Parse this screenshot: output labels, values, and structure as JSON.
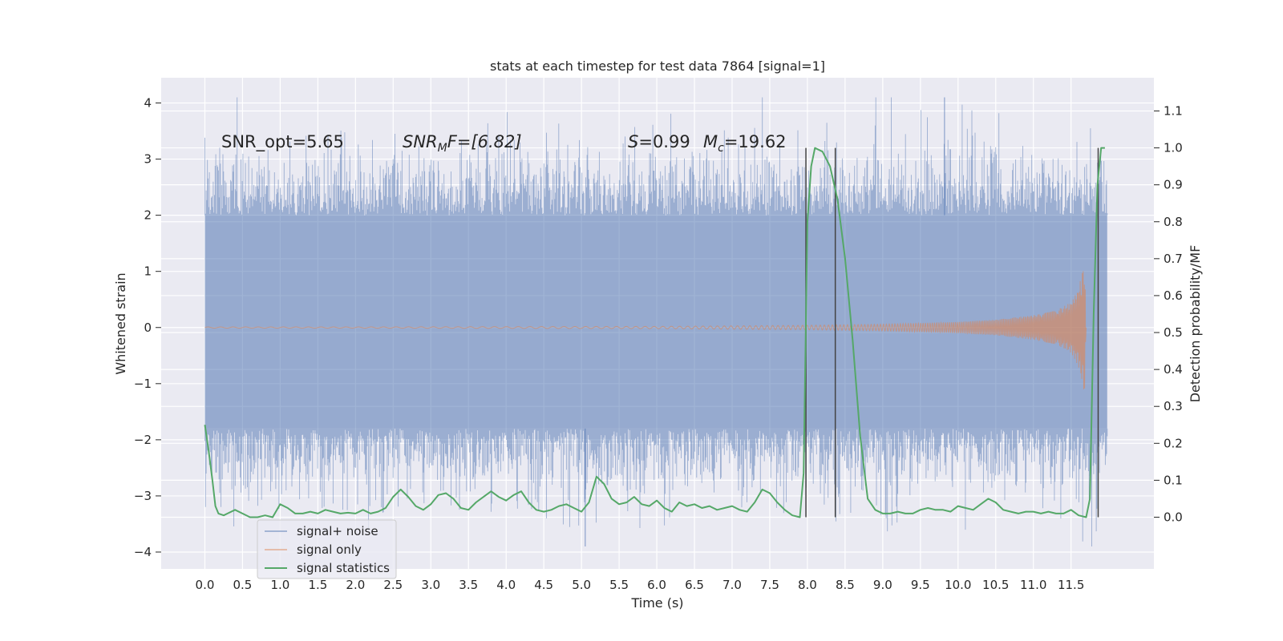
{
  "chart_data": {
    "type": "line",
    "title": "stats at each timestep for test data 7864 [signal=1]",
    "xlabel": "Time (s)",
    "ylabel": "Whitened strain",
    "y2label": "Detection probability/MF",
    "xlim": [
      -0.58,
      12.6
    ],
    "ylim": [
      -4.3,
      4.45
    ],
    "y2lim": [
      -0.14,
      1.19
    ],
    "xticks": [
      "0.0",
      "0.5",
      "1.0",
      "1.5",
      "2.0",
      "2.5",
      "3.0",
      "3.5",
      "4.0",
      "4.5",
      "5.0",
      "5.5",
      "6.0",
      "6.5",
      "7.0",
      "7.5",
      "8.0",
      "8.5",
      "9.0",
      "9.5",
      "10.0",
      "10.5",
      "11.0",
      "11.5"
    ],
    "yticks": [
      "4",
      "3",
      "2",
      "1",
      "0",
      "−1",
      "−2",
      "−3",
      "−4"
    ],
    "y2ticks": [
      "1.1",
      "1.0",
      "0.9",
      "0.8",
      "0.7",
      "0.6",
      "0.5",
      "0.4",
      "0.3",
      "0.2",
      "0.1",
      "0.0"
    ],
    "grid": true,
    "legend_position": "lower-left",
    "annotations": {
      "snr_opt": "SNR_opt=5.65",
      "snr_mf_base": "SNR",
      "snr_mf_sub": "M",
      "snr_mf_rest": "F=[6.82]",
      "s_base": "S",
      "s_rest": "=0.99",
      "mc_base": "M",
      "mc_sub": "c",
      "mc_rest": "=19.62"
    },
    "vertical_lines_x": [
      7.98,
      8.37,
      11.86
    ],
    "series": [
      {
        "name": "signal+ noise",
        "color": "#4c72b0",
        "axis": "left",
        "x_range": [
          0.0,
          11.98
        ],
        "band_upper_typical": 2.0,
        "band_lower_typical": -1.8,
        "peak_max": 4.1,
        "peak_min": -3.9
      },
      {
        "name": "signal only",
        "color": "#dd8452",
        "axis": "left",
        "chirp_x": [
          0.0,
          2.0,
          4.0,
          6.0,
          8.0,
          9.0,
          10.0,
          10.5,
          11.0,
          11.3,
          11.5,
          11.6,
          11.68,
          11.7
        ],
        "chirp_amplitude": [
          0.01,
          0.01,
          0.015,
          0.02,
          0.04,
          0.06,
          0.1,
          0.14,
          0.22,
          0.3,
          0.45,
          0.7,
          1.2,
          0.0
        ]
      },
      {
        "name": "signal statistics",
        "color": "#55a868",
        "axis": "right",
        "x": [
          0.0,
          0.05,
          0.1,
          0.14,
          0.18,
          0.25,
          0.3,
          0.4,
          0.5,
          0.6,
          0.7,
          0.8,
          0.9,
          1.0,
          1.1,
          1.2,
          1.3,
          1.4,
          1.5,
          1.6,
          1.7,
          1.8,
          1.9,
          2.0,
          2.1,
          2.2,
          2.3,
          2.4,
          2.5,
          2.6,
          2.7,
          2.8,
          2.9,
          3.0,
          3.1,
          3.2,
          3.3,
          3.4,
          3.5,
          3.6,
          3.7,
          3.8,
          3.9,
          4.0,
          4.1,
          4.2,
          4.3,
          4.4,
          4.5,
          4.6,
          4.7,
          4.8,
          4.9,
          5.0,
          5.1,
          5.2,
          5.3,
          5.4,
          5.5,
          5.6,
          5.7,
          5.8,
          5.9,
          6.0,
          6.1,
          6.2,
          6.3,
          6.4,
          6.5,
          6.6,
          6.7,
          6.8,
          6.9,
          7.0,
          7.1,
          7.2,
          7.3,
          7.4,
          7.5,
          7.6,
          7.7,
          7.8,
          7.9,
          7.95,
          8.0,
          8.05,
          8.1,
          8.2,
          8.3,
          8.4,
          8.5,
          8.6,
          8.7,
          8.8,
          8.9,
          9.0,
          9.1,
          9.2,
          9.3,
          9.4,
          9.5,
          9.6,
          9.7,
          9.8,
          9.9,
          10.0,
          10.1,
          10.2,
          10.3,
          10.4,
          10.5,
          10.6,
          10.7,
          10.8,
          10.9,
          11.0,
          11.1,
          11.2,
          11.3,
          11.4,
          11.5,
          11.6,
          11.7,
          11.75,
          11.8,
          11.85,
          11.9,
          11.95
        ],
        "y": [
          0.25,
          0.18,
          0.1,
          0.03,
          0.01,
          0.005,
          0.01,
          0.02,
          0.01,
          0.0,
          0.0,
          0.005,
          0.0,
          0.035,
          0.025,
          0.01,
          0.01,
          0.015,
          0.01,
          0.02,
          0.015,
          0.01,
          0.012,
          0.01,
          0.02,
          0.01,
          0.015,
          0.025,
          0.055,
          0.075,
          0.055,
          0.03,
          0.02,
          0.035,
          0.06,
          0.065,
          0.05,
          0.025,
          0.02,
          0.04,
          0.055,
          0.07,
          0.055,
          0.045,
          0.06,
          0.07,
          0.04,
          0.02,
          0.015,
          0.02,
          0.03,
          0.035,
          0.025,
          0.015,
          0.04,
          0.11,
          0.09,
          0.05,
          0.035,
          0.04,
          0.055,
          0.035,
          0.03,
          0.045,
          0.025,
          0.015,
          0.04,
          0.03,
          0.035,
          0.025,
          0.03,
          0.02,
          0.025,
          0.03,
          0.02,
          0.015,
          0.04,
          0.075,
          0.065,
          0.04,
          0.02,
          0.005,
          0.0,
          0.12,
          0.8,
          0.95,
          1.0,
          0.99,
          0.95,
          0.86,
          0.7,
          0.48,
          0.22,
          0.05,
          0.02,
          0.01,
          0.01,
          0.015,
          0.01,
          0.01,
          0.02,
          0.025,
          0.02,
          0.02,
          0.015,
          0.03,
          0.025,
          0.02,
          0.035,
          0.05,
          0.04,
          0.02,
          0.015,
          0.01,
          0.015,
          0.015,
          0.01,
          0.015,
          0.01,
          0.01,
          0.02,
          0.005,
          0.0,
          0.05,
          0.55,
          0.9,
          1.0,
          1.0
        ]
      }
    ]
  }
}
